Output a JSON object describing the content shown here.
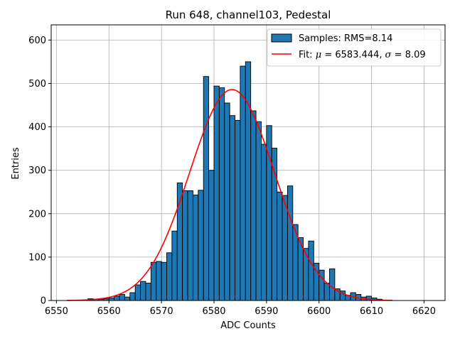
{
  "chart_data": {
    "type": "bar",
    "title": "Run 648, channel103, Pedestal",
    "xlabel": "ADC Counts",
    "ylabel": "Entries",
    "xlim": [
      6549,
      6624
    ],
    "ylim": [
      0,
      635
    ],
    "xticks": [
      6550,
      6560,
      6570,
      6580,
      6590,
      6600,
      6610,
      6620
    ],
    "yticks": [
      0,
      100,
      200,
      300,
      400,
      500,
      600
    ],
    "grid": true,
    "legend_position": "top-right",
    "histogram": {
      "name": "Samples: RMS=8.14",
      "color": "#1f77b4",
      "bin_width": 1,
      "bin_starts": [
        6556,
        6557,
        6558,
        6559,
        6560,
        6561,
        6562,
        6563,
        6564,
        6565,
        6566,
        6567,
        6568,
        6569,
        6570,
        6571,
        6572,
        6573,
        6574,
        6575,
        6576,
        6577,
        6578,
        6579,
        6580,
        6581,
        6582,
        6583,
        6584,
        6585,
        6586,
        6587,
        6588,
        6589,
        6590,
        6591,
        6592,
        6593,
        6594,
        6595,
        6596,
        6597,
        6598,
        6599,
        6600,
        6601,
        6602,
        6603,
        6604,
        6605,
        6606,
        6607,
        6608,
        6609,
        6610,
        6611
      ],
      "counts": [
        4,
        3,
        3,
        4,
        6,
        10,
        14,
        8,
        18,
        36,
        44,
        40,
        88,
        90,
        88,
        110,
        160,
        271,
        253,
        253,
        243,
        254,
        516,
        300,
        494,
        490,
        455,
        426,
        415,
        540,
        550,
        437,
        412,
        360,
        403,
        351,
        250,
        242,
        264,
        175,
        145,
        120,
        137,
        86,
        70,
        40,
        73,
        27,
        22,
        12,
        18,
        14,
        8,
        10,
        6,
        3
      ]
    },
    "fit": {
      "name_prefix": "Fit: ",
      "name_mu_symbol": "μ",
      "name_mu_value": " = 6583.444, ",
      "name_sigma_symbol": "σ",
      "name_sigma_value": " = 8.09",
      "color": "#ff0000",
      "mu": 6583.444,
      "sigma": 8.09,
      "amplitude": 486,
      "x_range": [
        6552,
        6614
      ]
    }
  }
}
